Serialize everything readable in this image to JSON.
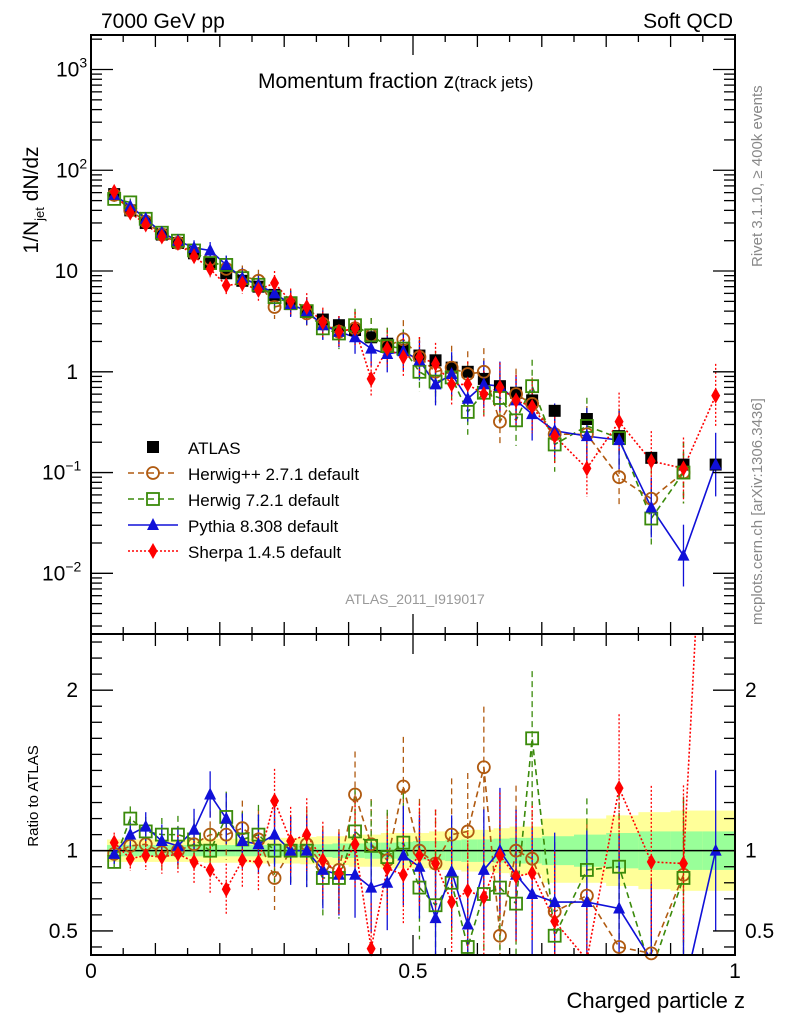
{
  "header": {
    "left": "7000 GeV pp",
    "right": "Soft QCD"
  },
  "side_labels": {
    "rivet": "Rivet 3.1.10, ≥ 400k events",
    "mcplots": "mcplots.cern.ch [arXiv:1306.3436]"
  },
  "chart_data": [
    {
      "type": "scatter",
      "panel": "main",
      "title_main": "Momentum fraction z",
      "title_sub": "(track jets)",
      "ylabel": "1/N_jet dN/dz",
      "ylabel_parts": {
        "pre": "1/N",
        "sub": "jet",
        "post": " dN/dz"
      },
      "yscale": "log",
      "ylim": [
        0.0025,
        2200
      ],
      "xlim": [
        0,
        1
      ],
      "yticks": [
        {
          "value": 1000,
          "label": "10",
          "exp": "3"
        },
        {
          "value": 100,
          "label": "10",
          "exp": "2"
        },
        {
          "value": 10,
          "label": "10",
          "exp": ""
        },
        {
          "value": 1,
          "label": "1",
          "exp": ""
        },
        {
          "value": 0.1,
          "label": "10",
          "exp": "−1"
        },
        {
          "value": 0.01,
          "label": "10",
          "exp": "−2"
        }
      ],
      "analysis_id": "ATLAS_2011_I919017",
      "legend_position": "lower-left",
      "x": [
        0.036,
        0.061,
        0.085,
        0.11,
        0.135,
        0.16,
        0.185,
        0.21,
        0.235,
        0.26,
        0.285,
        0.31,
        0.335,
        0.36,
        0.385,
        0.41,
        0.435,
        0.46,
        0.485,
        0.51,
        0.535,
        0.56,
        0.585,
        0.61,
        0.635,
        0.66,
        0.685,
        0.72,
        0.77,
        0.82,
        0.87,
        0.92,
        0.97
      ],
      "series": [
        {
          "name": "ATLAS",
          "color": "#000000",
          "marker": "square-filled",
          "line": "none",
          "values": [
            58,
            40,
            30,
            23,
            19,
            15,
            12,
            9.5,
            8.0,
            7.0,
            5.8,
            4.7,
            4.0,
            3.3,
            2.9,
            2.6,
            2.2,
            1.9,
            1.65,
            1.45,
            1.3,
            1.1,
            1.0,
            0.85,
            0.72,
            0.62,
            0.52,
            0.41,
            0.34,
            0.23,
            0.14,
            0.12,
            0.12
          ]
        },
        {
          "name": "Herwig++ 2.7.1 default",
          "color": "#b05a10",
          "marker": "circle-open",
          "line": "dashed",
          "values": [
            57,
            40,
            31,
            23,
            19,
            15,
            13,
            10.5,
            9.0,
            8.0,
            4.4,
            4.8,
            3.8,
            3.0,
            2.5,
            2.7,
            2.3,
            1.8,
            2.1,
            1.4,
            1.0,
            1.1,
            0.95,
            1.0,
            0.32,
            0.6,
            0.48,
            0.24,
            0.24,
            0.09,
            0.055,
            0.1,
            null
          ]
        },
        {
          "name": "Herwig 7.2.1 default",
          "color": "#3a8a0a",
          "marker": "square-open",
          "line": "dashed",
          "values": [
            52,
            48,
            33,
            24,
            20,
            16,
            12,
            11.5,
            8.5,
            7.3,
            5.5,
            4.8,
            4.0,
            2.7,
            2.4,
            2.9,
            2.3,
            1.8,
            1.7,
            1.0,
            0.8,
            0.88,
            0.4,
            0.62,
            0.55,
            0.33,
            0.72,
            0.19,
            0.29,
            0.22,
            0.035,
            0.1,
            null
          ]
        },
        {
          "name": "Pythia 8.308 default",
          "color": "#1010d8",
          "marker": "triangle-filled",
          "line": "solid",
          "values": [
            57,
            44,
            33,
            24,
            20,
            17,
            16,
            11.5,
            8.5,
            7.3,
            6.0,
            4.7,
            4.0,
            2.9,
            2.5,
            2.2,
            1.7,
            1.5,
            1.6,
            1.3,
            0.75,
            0.95,
            0.54,
            0.75,
            0.72,
            0.52,
            0.38,
            0.26,
            0.23,
            0.21,
            0.045,
            0.015,
            0.12
          ]
        },
        {
          "name": "Sherpa 1.4.5 default",
          "color": "#ff0000",
          "marker": "diamond-filled",
          "line": "dotted",
          "values": [
            61,
            38,
            29,
            22,
            19,
            14,
            10.5,
            7.2,
            7.5,
            6.5,
            7.6,
            5.0,
            4.4,
            3.1,
            2.5,
            2.7,
            0.85,
            1.7,
            1.4,
            1.4,
            1.2,
            0.75,
            0.75,
            0.6,
            0.7,
            0.52,
            0.45,
            0.23,
            0.11,
            0.32,
            0.13,
            0.11,
            0.58
          ]
        }
      ]
    },
    {
      "type": "scatter",
      "panel": "ratio",
      "ylabel": "Ratio to ATLAS",
      "xlabel": "Charged particle z",
      "ylim": [
        0.35,
        2.35
      ],
      "xlim": [
        0,
        1
      ],
      "yticks": [
        {
          "value": 2,
          "label": "2"
        },
        {
          "value": 1,
          "label": "1"
        },
        {
          "value": 0.5,
          "label": "0.5"
        }
      ],
      "xticks": [
        {
          "value": 0,
          "label": "0"
        },
        {
          "value": 0.5,
          "label": "0.5"
        },
        {
          "value": 1,
          "label": "1"
        }
      ],
      "reference_line": 1,
      "uncertainty_bands": {
        "stat_color": "#99ff99",
        "total_color": "#ffff99",
        "x_edges": [
          0.025,
          0.05,
          0.075,
          0.1,
          0.125,
          0.15,
          0.175,
          0.2,
          0.225,
          0.25,
          0.275,
          0.3,
          0.325,
          0.35,
          0.375,
          0.4,
          0.425,
          0.45,
          0.475,
          0.5,
          0.525,
          0.55,
          0.575,
          0.6,
          0.625,
          0.65,
          0.675,
          0.7,
          0.75,
          0.8,
          0.85,
          0.9,
          0.95,
          1.0
        ],
        "stat_halfwidth": [
          0.035,
          0.035,
          0.035,
          0.035,
          0.035,
          0.035,
          0.035,
          0.035,
          0.035,
          0.035,
          0.035,
          0.04,
          0.04,
          0.04,
          0.045,
          0.045,
          0.05,
          0.05,
          0.055,
          0.06,
          0.06,
          0.065,
          0.07,
          0.07,
          0.075,
          0.08,
          0.08,
          0.09,
          0.1,
          0.11,
          0.12,
          0.12,
          0.12
        ],
        "total_halfwidth": [
          0.07,
          0.07,
          0.07,
          0.07,
          0.07,
          0.07,
          0.075,
          0.075,
          0.075,
          0.08,
          0.08,
          0.08,
          0.085,
          0.09,
          0.09,
          0.1,
          0.1,
          0.11,
          0.11,
          0.11,
          0.12,
          0.12,
          0.13,
          0.13,
          0.14,
          0.15,
          0.15,
          0.2,
          0.2,
          0.22,
          0.24,
          0.25,
          0.25
        ]
      },
      "series": [
        {
          "name": "Herwig++ 2.7.1 default",
          "values": [
            0.98,
            1.03,
            1.04,
            0.99,
            1.0,
            1.04,
            1.1,
            1.1,
            1.14,
            1.07,
            0.83,
            1.0,
            1.04,
            0.91,
            0.88,
            1.35,
            1.04,
            0.94,
            1.4,
            1.0,
            0.92,
            1.1,
            1.12,
            1.52,
            0.47,
            1.0,
            0.95,
            0.62,
            0.72,
            0.4,
            0.36,
            0.85,
            null
          ]
        },
        {
          "name": "Herwig 7.2.1 default",
          "values": [
            0.93,
            1.2,
            1.12,
            1.1,
            1.1,
            1.07,
            1.0,
            1.21,
            1.07,
            1.1,
            1.0,
            1.0,
            1.0,
            0.83,
            0.83,
            1.12,
            1.03,
            0.96,
            1.05,
            0.77,
            0.66,
            0.8,
            0.4,
            0.73,
            0.77,
            0.67,
            1.7,
            0.47,
            0.88,
            0.9,
            0.25,
            0.83,
            null
          ]
        },
        {
          "name": "Pythia 8.308 default",
          "values": [
            0.98,
            1.1,
            1.15,
            1.06,
            1.03,
            1.13,
            1.35,
            1.2,
            1.06,
            1.04,
            1.1,
            1.0,
            1.0,
            0.88,
            0.85,
            0.85,
            0.77,
            0.8,
            0.97,
            0.9,
            0.58,
            0.87,
            0.54,
            0.88,
            1.0,
            0.85,
            0.73,
            0.68,
            0.68,
            0.64,
            0.32,
            0.12,
            1.0
          ]
        },
        {
          "name": "Sherpa 1.4.5 default",
          "values": [
            1.05,
            0.95,
            0.97,
            0.96,
            0.98,
            0.93,
            0.88,
            0.76,
            0.94,
            0.93,
            1.31,
            1.06,
            1.1,
            0.94,
            0.86,
            1.04,
            0.39,
            0.89,
            0.85,
            0.97,
            0.92,
            0.68,
            0.75,
            0.71,
            0.97,
            0.84,
            0.86,
            0.56,
            0.32,
            1.39,
            0.93,
            0.92,
            4.8
          ]
        }
      ]
    }
  ]
}
